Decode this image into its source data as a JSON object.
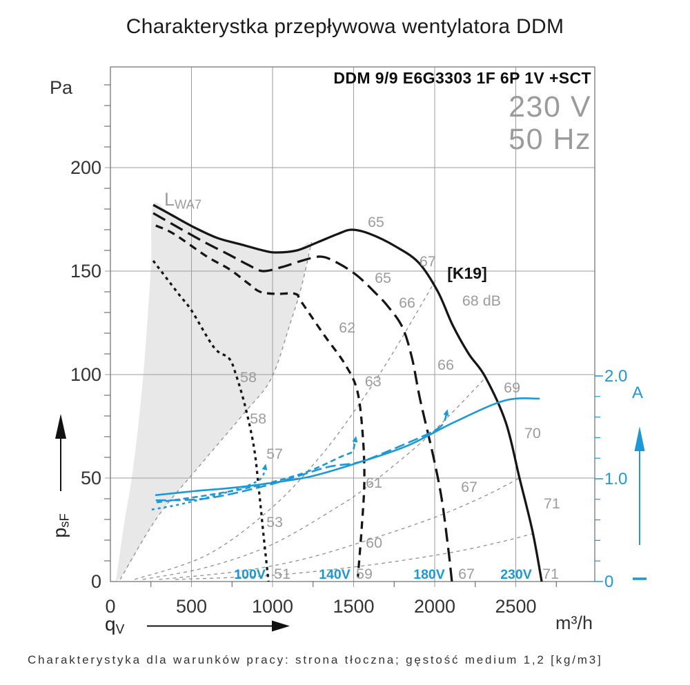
{
  "page": {
    "title": "Charakterystka przepływowa wentylatora DDM",
    "footer": "Charakterystyka dla warunków pracy: strona tłoczna; gęstość medium 1,2 [kg/m3]"
  },
  "header": {
    "model": "DDM 9/9 E6G3303 1F 6P 1V +SCT",
    "voltage": "230 V",
    "frequency": "50 Hz"
  },
  "chart_data": {
    "type": "line",
    "title": "Charakterystka przepływowa wentylatora DDM",
    "x_axis": {
      "symbol": "q",
      "symbol_sub": "V",
      "unit": "m³/h",
      "ticks": [
        0,
        500,
        1000,
        1500,
        2000,
        2500
      ],
      "minor_ticks": [
        250,
        750,
        1250,
        1750,
        2250,
        2750
      ],
      "range": [
        0,
        2990
      ],
      "grid": true
    },
    "y_axis_left": {
      "symbol": "p",
      "symbol_sub": "sF",
      "unit": "Pa",
      "ticks": [
        0,
        50,
        100,
        150,
        200
      ],
      "minor_tick_step": 10,
      "range": [
        0,
        249
      ],
      "grid": true
    },
    "y_axis_right": {
      "unit": "A",
      "ticks": [
        {
          "value": 0,
          "label": "0"
        },
        {
          "value": 1,
          "label": "1.0"
        },
        {
          "value": 2,
          "label": "2.0"
        }
      ],
      "minor_tick_step": 0.2,
      "range": [
        0,
        2.0
      ]
    },
    "noise_ref": {
      "symbol": "L",
      "symbol_sub": "WA7"
    },
    "annotation": {
      "text": "[K19]",
      "q": 2200,
      "p": 149
    },
    "colors": {
      "blue": "#1b98d5",
      "black": "#161616",
      "gray_label": "#9c9c9c",
      "grid": "#9b9b9b",
      "box": "#777777",
      "region": "#e8e8e8",
      "axis_text": "#333333"
    },
    "operating_region": {
      "points": [
        [
          34,
          0
        ],
        [
          85,
          28
        ],
        [
          128,
          48
        ],
        [
          170,
          74
        ],
        [
          204,
          101
        ],
        [
          230,
          128
        ],
        [
          251,
          154
        ],
        [
          264,
          182
        ],
        [
          380,
          177
        ],
        [
          520,
          171
        ],
        [
          660,
          166
        ],
        [
          800,
          163
        ],
        [
          940,
          160
        ],
        [
          1021,
          159
        ],
        [
          1150,
          160
        ],
        [
          1226,
          163
        ],
        [
          1180,
          143
        ],
        [
          1106,
          124
        ],
        [
          991,
          98
        ],
        [
          821,
          81
        ],
        [
          540,
          55
        ],
        [
          289,
          31
        ],
        [
          100,
          6
        ],
        [
          34,
          0
        ]
      ]
    },
    "system_parabolas": [
      {
        "name": "surge-line",
        "points": [
          [
            60,
            1
          ],
          [
            289,
            31
          ],
          [
            540,
            55
          ],
          [
            821,
            81
          ],
          [
            991,
            98
          ],
          [
            1106,
            124
          ],
          [
            1180,
            143
          ],
          [
            1240,
            164
          ]
        ]
      },
      {
        "name": "system-line-2",
        "points": [
          [
            150,
            1
          ],
          [
            600,
            13
          ],
          [
            1000,
            36
          ],
          [
            1300,
            61
          ],
          [
            1519,
            84
          ],
          [
            1715,
            107
          ],
          [
            1949,
            138
          ],
          [
            2013,
            147
          ]
        ]
      },
      {
        "name": "system-line-3",
        "points": [
          [
            200,
            1
          ],
          [
            600,
            7
          ],
          [
            1000,
            18
          ],
          [
            1400,
            36
          ],
          [
            1587,
            46
          ],
          [
            1900,
            66
          ],
          [
            2100,
            81
          ],
          [
            2319,
            99
          ]
        ]
      },
      {
        "name": "system-line-4",
        "points": [
          [
            300,
            1
          ],
          [
            800,
            5
          ],
          [
            1200,
            11
          ],
          [
            1587,
            20
          ],
          [
            2000,
            31
          ],
          [
            2300,
            41
          ],
          [
            2523,
            50
          ]
        ]
      },
      {
        "name": "system-line-5",
        "points": [
          [
            400,
            1
          ],
          [
            1000,
            3
          ],
          [
            1600,
            8
          ],
          [
            2100,
            14
          ],
          [
            2400,
            19
          ],
          [
            2600,
            23
          ]
        ]
      }
    ],
    "pressure_curves": [
      {
        "name": "230V",
        "style": "solid",
        "points": [
          [
            264,
            182
          ],
          [
            380,
            177
          ],
          [
            520,
            171
          ],
          [
            660,
            166
          ],
          [
            800,
            163
          ],
          [
            940,
            160
          ],
          [
            1021,
            159
          ],
          [
            1150,
            160
          ],
          [
            1280,
            164
          ],
          [
            1404,
            168
          ],
          [
            1489,
            170
          ],
          [
            1600,
            168
          ],
          [
            1757,
            162
          ],
          [
            1902,
            154
          ],
          [
            2020,
            140
          ],
          [
            2110,
            124
          ],
          [
            2210,
            110
          ],
          [
            2311,
            99
          ],
          [
            2438,
            77
          ],
          [
            2523,
            50
          ],
          [
            2604,
            24
          ],
          [
            2660,
            0
          ]
        ]
      },
      {
        "name": "180V",
        "style": "long-dash",
        "points": [
          [
            264,
            178
          ],
          [
            420,
            171
          ],
          [
            580,
            164
          ],
          [
            730,
            158
          ],
          [
            850,
            153
          ],
          [
            940,
            150
          ],
          [
            1060,
            152
          ],
          [
            1180,
            155
          ],
          [
            1298,
            157
          ],
          [
            1400,
            154
          ],
          [
            1519,
            148
          ],
          [
            1640,
            139
          ],
          [
            1711,
            133
          ],
          [
            1800,
            123
          ],
          [
            1860,
            108
          ],
          [
            1910,
            88
          ],
          [
            1990,
            61
          ],
          [
            2043,
            40
          ],
          [
            2085,
            15
          ],
          [
            2106,
            0
          ]
        ]
      },
      {
        "name": "140V",
        "style": "dash",
        "points": [
          [
            280,
            172
          ],
          [
            391,
            168
          ],
          [
            596,
            157
          ],
          [
            732,
            151
          ],
          [
            851,
            144
          ],
          [
            923,
            140
          ],
          [
            1021,
            139
          ],
          [
            1140,
            139
          ],
          [
            1179,
            135
          ],
          [
            1319,
            119
          ],
          [
            1447,
            105
          ],
          [
            1523,
            92
          ],
          [
            1557,
            70
          ],
          [
            1566,
            48
          ],
          [
            1549,
            25
          ],
          [
            1526,
            2
          ]
        ]
      },
      {
        "name": "100V",
        "style": "short-dash",
        "points": [
          [
            264,
            155
          ],
          [
            420,
            139
          ],
          [
            500,
            131
          ],
          [
            640,
            113
          ],
          [
            730,
            108
          ],
          [
            770,
            101
          ],
          [
            830,
            85
          ],
          [
            885,
            65
          ],
          [
            915,
            45
          ],
          [
            945,
            22
          ],
          [
            975,
            0
          ]
        ]
      }
    ],
    "current_curves": [
      {
        "name": "230V",
        "style": "solid",
        "end_arrow": false,
        "points": [
          [
            277,
            0.84
          ],
          [
            520,
            0.88
          ],
          [
            740,
            0.91
          ],
          [
            950,
            0.95
          ],
          [
            1230,
            1.02
          ],
          [
            1515,
            1.15
          ],
          [
            1830,
            1.32
          ],
          [
            2120,
            1.55
          ],
          [
            2430,
            1.76
          ],
          [
            2647,
            1.78
          ]
        ]
      },
      {
        "name": "180V",
        "style": "long-dash",
        "end_arrow": true,
        "points": [
          [
            280,
            0.79
          ],
          [
            600,
            0.81
          ],
          [
            1000,
            0.95
          ],
          [
            1330,
            1.11
          ],
          [
            1530,
            1.16
          ],
          [
            1730,
            1.28
          ],
          [
            1950,
            1.43
          ],
          [
            2030,
            1.5
          ],
          [
            2060,
            1.56
          ],
          [
            2075,
            1.65
          ]
        ]
      },
      {
        "name": "140V",
        "style": "dash",
        "end_arrow": true,
        "points": [
          [
            285,
            0.77
          ],
          [
            600,
            0.84
          ],
          [
            900,
            0.93
          ],
          [
            1200,
            1.06
          ],
          [
            1430,
            1.22
          ],
          [
            1490,
            1.26
          ],
          [
            1505,
            1.33
          ],
          [
            1512,
            1.39
          ]
        ]
      },
      {
        "name": "100V",
        "style": "short-dash",
        "end_arrow": true,
        "points": [
          [
            255,
            0.7
          ],
          [
            455,
            0.76
          ],
          [
            766,
            0.89
          ],
          [
            900,
            0.97
          ],
          [
            940,
            1.03
          ],
          [
            950,
            1.08
          ],
          [
            955,
            1.12
          ]
        ]
      }
    ],
    "noise_labels": [
      {
        "text": "65",
        "q": 1638,
        "p": 174
      },
      {
        "text": "67",
        "q": 1957,
        "p": 155
      },
      {
        "text": "65",
        "q": 1681,
        "p": 147
      },
      {
        "text": "66",
        "q": 1830,
        "p": 135
      },
      {
        "text": "68 dB",
        "q": 2289,
        "p": 136
      },
      {
        "text": "62",
        "q": 1460,
        "p": 123
      },
      {
        "text": "66",
        "q": 2068,
        "p": 105
      },
      {
        "text": "58",
        "q": 851,
        "p": 99
      },
      {
        "text": "63",
        "q": 1620,
        "p": 97
      },
      {
        "text": "69",
        "q": 2477,
        "p": 94
      },
      {
        "text": "58",
        "q": 911,
        "p": 79
      },
      {
        "text": "70",
        "q": 2604,
        "p": 72
      },
      {
        "text": "57",
        "q": 1013,
        "p": 62
      },
      {
        "text": "61",
        "q": 1626,
        "p": 48
      },
      {
        "text": "67",
        "q": 2213,
        "p": 46
      },
      {
        "text": "71",
        "q": 2723,
        "p": 38
      },
      {
        "text": "53",
        "q": 1013,
        "p": 29
      },
      {
        "text": "60",
        "q": 1626,
        "p": 19
      },
      {
        "text": "51",
        "q": 1060,
        "p": 4
      },
      {
        "text": "59",
        "q": 1566,
        "p": 4
      },
      {
        "text": "67",
        "q": 2196,
        "p": 4
      },
      {
        "text": "71",
        "q": 2715,
        "p": 4
      }
    ],
    "voltage_labels": [
      {
        "text": "100V",
        "q": 860,
        "p": 4
      },
      {
        "text": "140V",
        "q": 1383,
        "p": 4
      },
      {
        "text": "180V",
        "q": 1966,
        "p": 4
      },
      {
        "text": "230V",
        "q": 2502,
        "p": 4
      }
    ]
  }
}
